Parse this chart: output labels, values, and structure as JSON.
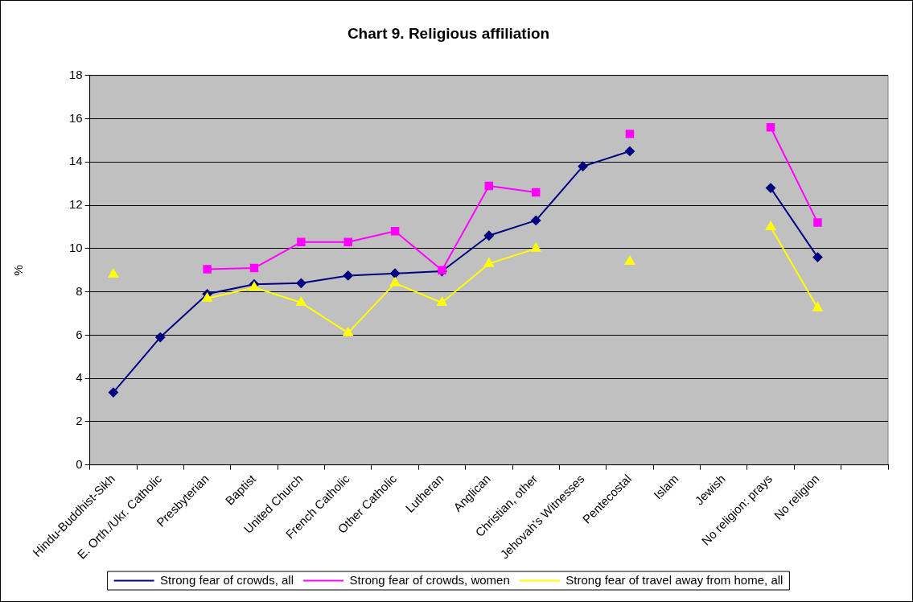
{
  "chart_data": {
    "type": "line",
    "title": "Chart 9. Religious affiliation",
    "ylabel": "%",
    "categories": [
      "Hindu-Buddhist-Sikh",
      "E. Orth./Ukr. Catholic",
      "Presbyterian",
      "Baptist",
      "United Church",
      "French Catholic",
      "Other Catholic",
      "Lutheran",
      "Anglican",
      "Christian, other",
      "Jehovah's Witnesses",
      "Pentecostal",
      "Islam",
      "Jewish",
      "No religion: prays",
      "No religion",
      null
    ],
    "series": [
      {
        "name": "Strong fear of crowds, all",
        "color": "#000080",
        "marker": "diamond",
        "values": [
          3.35,
          5.9,
          7.9,
          8.35,
          8.4,
          8.75,
          8.85,
          8.95,
          10.6,
          11.3,
          13.8,
          14.5,
          null,
          null,
          12.8,
          9.6,
          null
        ]
      },
      {
        "name": "Strong fear of crowds, women",
        "color": "#ff00ff",
        "marker": "square",
        "values": [
          null,
          null,
          9.05,
          9.1,
          10.3,
          10.3,
          10.8,
          9.0,
          12.9,
          12.6,
          null,
          15.3,
          null,
          null,
          15.6,
          11.2,
          null
        ]
      },
      {
        "name": "Strong fear of travel away from home, all",
        "color": "#ffff00",
        "marker": "triangle",
        "values": [
          8.8,
          null,
          7.7,
          8.2,
          7.5,
          6.1,
          8.4,
          7.5,
          9.3,
          10.0,
          null,
          9.4,
          null,
          null,
          11.0,
          7.25,
          null
        ]
      }
    ],
    "ylim": [
      0,
      18
    ],
    "yticks": [
      0,
      2,
      4,
      6,
      8,
      10,
      12,
      14,
      16,
      18
    ],
    "grid": "y",
    "legend": "bottom"
  }
}
